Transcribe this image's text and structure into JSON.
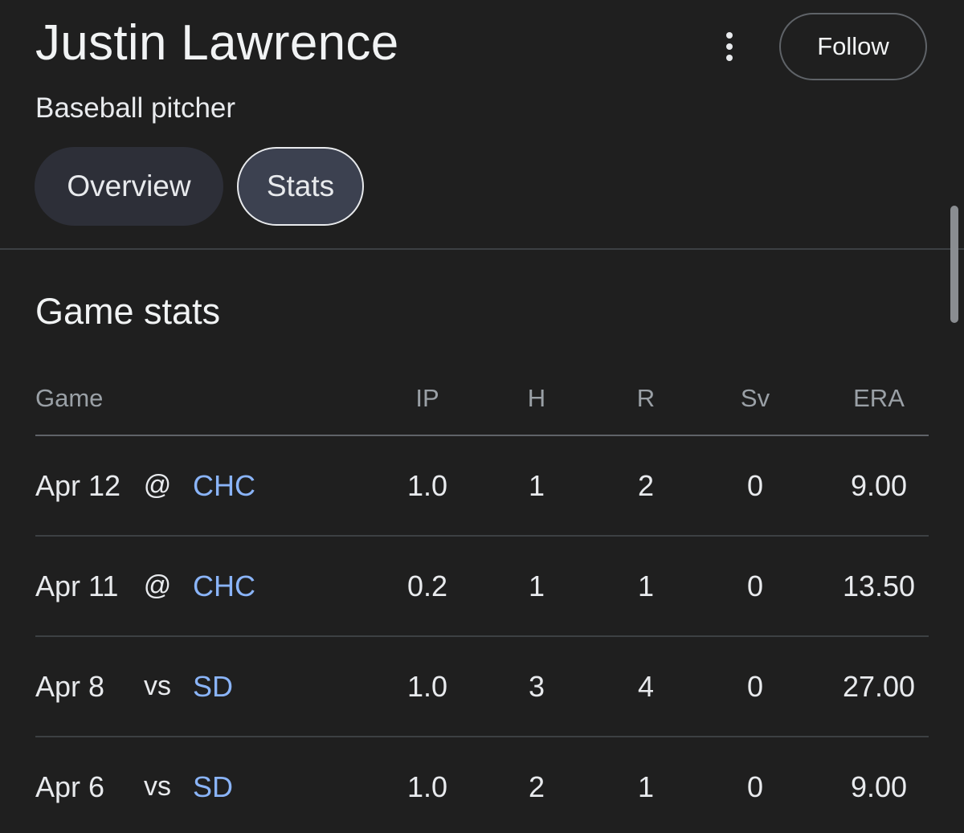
{
  "player": {
    "name": "Justin Lawrence",
    "description": "Baseball pitcher"
  },
  "actions": {
    "follow_label": "Follow",
    "more_icon": "more-vert-icon"
  },
  "tabs": [
    {
      "label": "Overview",
      "selected": false
    },
    {
      "label": "Stats",
      "selected": true
    }
  ],
  "game_stats": {
    "title": "Game stats",
    "columns": {
      "game": "Game",
      "ip": "IP",
      "h": "H",
      "r": "R",
      "sv": "Sv",
      "era": "ERA"
    },
    "rows": [
      {
        "date": "Apr 12",
        "venue": "@",
        "opponent": "CHC",
        "ip": "1.0",
        "h": "1",
        "r": "2",
        "sv": "0",
        "era": "9.00"
      },
      {
        "date": "Apr 11",
        "venue": "@",
        "opponent": "CHC",
        "ip": "0.2",
        "h": "1",
        "r": "1",
        "sv": "0",
        "era": "13.50"
      },
      {
        "date": "Apr 8",
        "venue": "vs",
        "opponent": "SD",
        "ip": "1.0",
        "h": "3",
        "r": "4",
        "sv": "0",
        "era": "27.00"
      },
      {
        "date": "Apr 6",
        "venue": "vs",
        "opponent": "SD",
        "ip": "1.0",
        "h": "2",
        "r": "1",
        "sv": "0",
        "era": "9.00"
      }
    ]
  },
  "colors": {
    "background": "#1f1f1f",
    "link": "#8ab4f8",
    "selected_chip": "#3c4150",
    "chip": "#2d2f38"
  }
}
